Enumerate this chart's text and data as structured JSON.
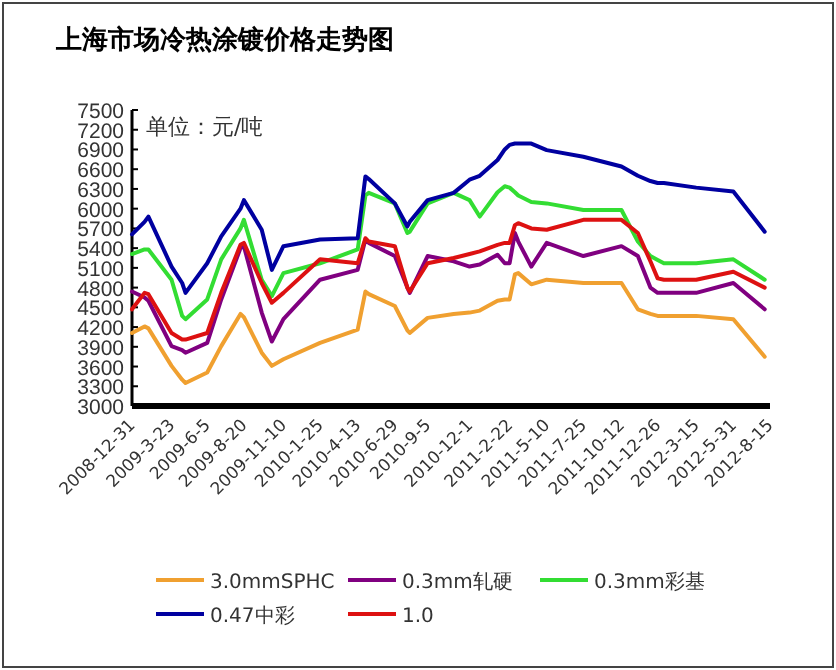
{
  "chart_data": {
    "type": "line",
    "title": "上海市场冷热涂镀价格走势图",
    "annotations": [
      "单位：元/吨"
    ],
    "x": [
      "2008-12-31",
      "2009-01-26",
      "2009-02-03",
      "2009-03-23",
      "2009-04-14",
      "2009-04-21",
      "2009-06-05",
      "2009-07-04",
      "2009-08-13",
      "2009-08-20",
      "2009-09-26",
      "2009-10-17",
      "2009-11-10",
      "2010-01-25",
      "2010-04-13",
      "2010-04-29",
      "2010-05-06",
      "2010-06-29",
      "2010-07-25",
      "2010-07-30",
      "2010-09-05",
      "2010-10-29",
      "2010-12-01",
      "2010-12-22",
      "2011-01-28",
      "2011-02-12",
      "2011-02-22",
      "2011-03-05",
      "2011-03-12",
      "2011-04-08",
      "2011-05-10",
      "2011-07-25",
      "2011-10-12",
      "2011-11-15",
      "2011-12-11",
      "2011-12-26",
      "2012-01-08",
      "2012-03-15",
      "2012-05-31",
      "2012-08-04"
    ],
    "series": [
      {
        "name": "3.0mmSPHC",
        "color": "#f0a030",
        "values": [
          4110,
          4210,
          4180,
          3610,
          3400,
          3350,
          3510,
          3910,
          4400,
          4350,
          3810,
          3610,
          3710,
          3960,
          4160,
          4740,
          4700,
          4520,
          4150,
          4110,
          4340,
          4400,
          4420,
          4450,
          4600,
          4620,
          4620,
          5000,
          5020,
          4850,
          4920,
          4870,
          4870,
          4470,
          4400,
          4370,
          4370,
          4370,
          4320,
          3750
        ]
      },
      {
        "name": "0.3mm轧硬",
        "color": "#800080",
        "values": [
          4740,
          4650,
          4600,
          3910,
          3850,
          3810,
          3960,
          4620,
          5400,
          5430,
          4420,
          3980,
          4320,
          4920,
          5070,
          5530,
          5480,
          5280,
          4800,
          4720,
          5280,
          5200,
          5120,
          5150,
          5300,
          5170,
          5170,
          5630,
          5500,
          5120,
          5480,
          5280,
          5430,
          5280,
          4800,
          4720,
          4720,
          4720,
          4870,
          4470
        ]
      },
      {
        "name": "0.3mm彩基",
        "color": "#33dd33",
        "values": [
          5310,
          5380,
          5380,
          4920,
          4370,
          4320,
          4620,
          5230,
          5700,
          5830,
          4920,
          4670,
          5020,
          5170,
          5380,
          6200,
          6240,
          6080,
          5630,
          5650,
          6080,
          6240,
          6130,
          5880,
          6250,
          6340,
          6320,
          6250,
          6200,
          6100,
          6080,
          5980,
          5980,
          5500,
          5280,
          5220,
          5170,
          5170,
          5230,
          4920
        ]
      },
      {
        "name": "0.47中彩",
        "color": "#0000a0",
        "values": [
          5610,
          5800,
          5880,
          5120,
          4870,
          4720,
          5170,
          5580,
          6000,
          6130,
          5680,
          5070,
          5430,
          5530,
          5550,
          6490,
          6450,
          6080,
          5730,
          5800,
          6130,
          6240,
          6440,
          6500,
          6740,
          6900,
          6970,
          6990,
          6990,
          6990,
          6890,
          6790,
          6640,
          6500,
          6420,
          6390,
          6390,
          6320,
          6260,
          5650
        ]
      },
      {
        "name": "1.0",
        "color": "#dd1111",
        "values": [
          4470,
          4720,
          4700,
          4110,
          4010,
          4010,
          4110,
          4720,
          5450,
          5480,
          4870,
          4570,
          4720,
          5230,
          5170,
          5550,
          5500,
          5430,
          4800,
          4740,
          5170,
          5250,
          5310,
          5350,
          5450,
          5480,
          5480,
          5750,
          5780,
          5700,
          5680,
          5830,
          5830,
          5630,
          5200,
          4940,
          4920,
          4920,
          5040,
          4800
        ]
      }
    ],
    "xlim": [
      "2008-12-31",
      "2012-08-15"
    ],
    "xticks": [
      {
        "value": "2008-12-31",
        "label": "2008-12-31"
      },
      {
        "value": "2009-03-23",
        "label": "2009-3-23"
      },
      {
        "value": "2009-06-05",
        "label": "2009-6-5"
      },
      {
        "value": "2009-08-20",
        "label": "2009-8-20"
      },
      {
        "value": "2009-11-10",
        "label": "2009-11-10"
      },
      {
        "value": "2010-01-25",
        "label": "2010-1-25"
      },
      {
        "value": "2010-04-13",
        "label": "2010-4-13"
      },
      {
        "value": "2010-06-29",
        "label": "2010-6-29"
      },
      {
        "value": "2010-09-05",
        "label": "2010-9-5"
      },
      {
        "value": "2010-12-01",
        "label": "2010-12-1"
      },
      {
        "value": "2011-02-22",
        "label": "2011-2-22"
      },
      {
        "value": "2011-05-10",
        "label": "2011-5-10"
      },
      {
        "value": "2011-07-25",
        "label": "2011-7-25"
      },
      {
        "value": "2011-10-12",
        "label": "2011-10-12"
      },
      {
        "value": "2011-12-26",
        "label": "2011-12-26"
      },
      {
        "value": "2012-03-15",
        "label": "2012-3-15"
      },
      {
        "value": "2012-05-31",
        "label": "2012-5-31"
      },
      {
        "value": "2012-08-15",
        "label": "2012-8-15"
      }
    ],
    "ylim": [
      3000,
      7500
    ],
    "yticks": [
      3000,
      3300,
      3600,
      3900,
      4200,
      4500,
      4800,
      5100,
      5400,
      5700,
      6000,
      6300,
      6600,
      6900,
      7200,
      7500
    ],
    "grid": false,
    "legend": "bottom",
    "marker": "none",
    "line_style": "solid"
  }
}
